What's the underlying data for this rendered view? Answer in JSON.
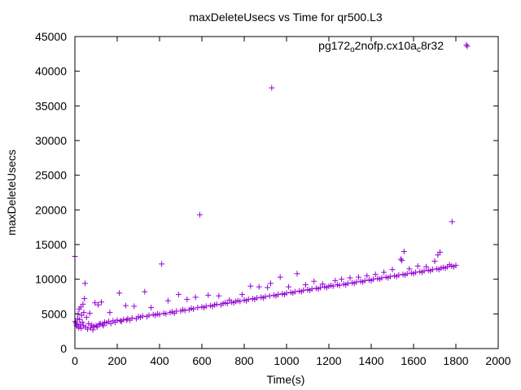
{
  "colors": {
    "series": "#9400d3",
    "axis": "#000000",
    "background": "#ffffff"
  },
  "chart_data": {
    "type": "scatter",
    "title": "maxDeleteUsecs vs Time for qr500.L3",
    "xlabel": "Time(s)",
    "ylabel": "maxDeleteUsecs",
    "xlim": [
      0,
      2000
    ],
    "ylim": [
      0,
      45000
    ],
    "x_ticks": [
      "0",
      "200",
      "400",
      "600",
      "800",
      "1000",
      "1200",
      "1400",
      "1600",
      "1800",
      "2000"
    ],
    "y_ticks": [
      "0",
      "5000",
      "10000",
      "15000",
      "20000",
      "25000",
      "30000",
      "35000",
      "40000",
      "45000"
    ],
    "grid": false,
    "legend": {
      "position": "top-right",
      "entries": [
        "pg172_o2nofp.cx10a_c8r32"
      ]
    },
    "marker": "plus",
    "series": [
      {
        "name": "pg172_o2nofp.cx10a_c8r32",
        "color": "#9400d3",
        "points": [
          [
            0,
            13300
          ],
          [
            2,
            3900
          ],
          [
            5,
            3700
          ],
          [
            8,
            3400
          ],
          [
            10,
            3200
          ],
          [
            12,
            4300
          ],
          [
            15,
            5000
          ],
          [
            18,
            3000
          ],
          [
            20,
            5700
          ],
          [
            22,
            4200
          ],
          [
            25,
            3500
          ],
          [
            28,
            6000
          ],
          [
            30,
            2900
          ],
          [
            32,
            4800
          ],
          [
            35,
            3800
          ],
          [
            38,
            6400
          ],
          [
            40,
            3300
          ],
          [
            42,
            5200
          ],
          [
            45,
            7200
          ],
          [
            48,
            9400
          ],
          [
            50,
            3100
          ],
          [
            55,
            4500
          ],
          [
            60,
            2800
          ],
          [
            65,
            3600
          ],
          [
            70,
            5100
          ],
          [
            75,
            3000
          ],
          [
            80,
            3400
          ],
          [
            85,
            2700
          ],
          [
            90,
            3200
          ],
          [
            95,
            6600
          ],
          [
            100,
            3300
          ],
          [
            105,
            3100
          ],
          [
            110,
            6300
          ],
          [
            115,
            3500
          ],
          [
            120,
            3600
          ],
          [
            125,
            6700
          ],
          [
            130,
            3500
          ],
          [
            135,
            3300
          ],
          [
            140,
            3800
          ],
          [
            150,
            3700
          ],
          [
            160,
            3900
          ],
          [
            165,
            5200
          ],
          [
            170,
            3600
          ],
          [
            180,
            4000
          ],
          [
            190,
            3800
          ],
          [
            200,
            4100
          ],
          [
            210,
            8000
          ],
          [
            215,
            4000
          ],
          [
            220,
            3900
          ],
          [
            230,
            4200
          ],
          [
            240,
            6200
          ],
          [
            245,
            4100
          ],
          [
            250,
            4300
          ],
          [
            260,
            4100
          ],
          [
            270,
            4400
          ],
          [
            280,
            6100
          ],
          [
            290,
            4300
          ],
          [
            300,
            4600
          ],
          [
            310,
            4500
          ],
          [
            320,
            4700
          ],
          [
            330,
            8200
          ],
          [
            340,
            4600
          ],
          [
            350,
            4800
          ],
          [
            360,
            5900
          ],
          [
            370,
            4900
          ],
          [
            380,
            4800
          ],
          [
            390,
            5000
          ],
          [
            400,
            4900
          ],
          [
            410,
            12200
          ],
          [
            420,
            5100
          ],
          [
            430,
            5000
          ],
          [
            440,
            6900
          ],
          [
            450,
            5200
          ],
          [
            460,
            5300
          ],
          [
            470,
            5100
          ],
          [
            480,
            5400
          ],
          [
            490,
            7800
          ],
          [
            500,
            5400
          ],
          [
            510,
            5600
          ],
          [
            520,
            5500
          ],
          [
            530,
            7100
          ],
          [
            540,
            5600
          ],
          [
            550,
            5800
          ],
          [
            560,
            5700
          ],
          [
            570,
            7400
          ],
          [
            580,
            5900
          ],
          [
            590,
            19300
          ],
          [
            600,
            6000
          ],
          [
            610,
            5900
          ],
          [
            620,
            6100
          ],
          [
            630,
            7700
          ],
          [
            640,
            6200
          ],
          [
            650,
            6100
          ],
          [
            660,
            6300
          ],
          [
            670,
            6400
          ],
          [
            680,
            7600
          ],
          [
            690,
            6300
          ],
          [
            700,
            6500
          ],
          [
            710,
            6600
          ],
          [
            720,
            6500
          ],
          [
            730,
            7000
          ],
          [
            740,
            6700
          ],
          [
            750,
            6600
          ],
          [
            760,
            6800
          ],
          [
            770,
            6900
          ],
          [
            780,
            6800
          ],
          [
            790,
            7800
          ],
          [
            800,
            7000
          ],
          [
            810,
            6900
          ],
          [
            820,
            7100
          ],
          [
            830,
            9000
          ],
          [
            840,
            7200
          ],
          [
            850,
            7100
          ],
          [
            860,
            7300
          ],
          [
            870,
            8900
          ],
          [
            880,
            7400
          ],
          [
            890,
            7300
          ],
          [
            900,
            7500
          ],
          [
            910,
            8800
          ],
          [
            920,
            7600
          ],
          [
            925,
            9400
          ],
          [
            930,
            37600
          ],
          [
            940,
            7700
          ],
          [
            950,
            7600
          ],
          [
            960,
            7800
          ],
          [
            970,
            10300
          ],
          [
            980,
            7900
          ],
          [
            990,
            7800
          ],
          [
            1000,
            8000
          ],
          [
            1010,
            8900
          ],
          [
            1020,
            8100
          ],
          [
            1030,
            8000
          ],
          [
            1040,
            8200
          ],
          [
            1050,
            10800
          ],
          [
            1060,
            8300
          ],
          [
            1070,
            8200
          ],
          [
            1080,
            8400
          ],
          [
            1090,
            9200
          ],
          [
            1100,
            8500
          ],
          [
            1110,
            8400
          ],
          [
            1120,
            8600
          ],
          [
            1130,
            9700
          ],
          [
            1140,
            8700
          ],
          [
            1150,
            8600
          ],
          [
            1160,
            8800
          ],
          [
            1170,
            9300
          ],
          [
            1180,
            8900
          ],
          [
            1190,
            8800
          ],
          [
            1200,
            9000
          ],
          [
            1210,
            9100
          ],
          [
            1220,
            9000
          ],
          [
            1230,
            9800
          ],
          [
            1240,
            9200
          ],
          [
            1250,
            9100
          ],
          [
            1260,
            10000
          ],
          [
            1270,
            9300
          ],
          [
            1280,
            9200
          ],
          [
            1290,
            9400
          ],
          [
            1300,
            10200
          ],
          [
            1310,
            9500
          ],
          [
            1320,
            9400
          ],
          [
            1330,
            9600
          ],
          [
            1340,
            10300
          ],
          [
            1350,
            9700
          ],
          [
            1360,
            9600
          ],
          [
            1370,
            9800
          ],
          [
            1380,
            10500
          ],
          [
            1390,
            9900
          ],
          [
            1400,
            9800
          ],
          [
            1410,
            10000
          ],
          [
            1420,
            10700
          ],
          [
            1430,
            10100
          ],
          [
            1440,
            10000
          ],
          [
            1450,
            10200
          ],
          [
            1460,
            11000
          ],
          [
            1470,
            10300
          ],
          [
            1480,
            10200
          ],
          [
            1490,
            10400
          ],
          [
            1500,
            11400
          ],
          [
            1510,
            10500
          ],
          [
            1520,
            10400
          ],
          [
            1530,
            10600
          ],
          [
            1540,
            12900
          ],
          [
            1545,
            12700
          ],
          [
            1550,
            10700
          ],
          [
            1555,
            14000
          ],
          [
            1560,
            10600
          ],
          [
            1570,
            10800
          ],
          [
            1580,
            11500
          ],
          [
            1590,
            10900
          ],
          [
            1600,
            10800
          ],
          [
            1610,
            11000
          ],
          [
            1620,
            11900
          ],
          [
            1630,
            11100
          ],
          [
            1640,
            11000
          ],
          [
            1650,
            11200
          ],
          [
            1660,
            11800
          ],
          [
            1670,
            11300
          ],
          [
            1680,
            11200
          ],
          [
            1690,
            11400
          ],
          [
            1700,
            12600
          ],
          [
            1710,
            11500
          ],
          [
            1715,
            13500
          ],
          [
            1720,
            11400
          ],
          [
            1725,
            13900
          ],
          [
            1730,
            11600
          ],
          [
            1740,
            11700
          ],
          [
            1750,
            11600
          ],
          [
            1760,
            11800
          ],
          [
            1770,
            12100
          ],
          [
            1780,
            11900
          ],
          [
            1782,
            18300
          ],
          [
            1790,
            11800
          ],
          [
            1800,
            12000
          ],
          [
            1850,
            43800
          ]
        ]
      }
    ]
  }
}
